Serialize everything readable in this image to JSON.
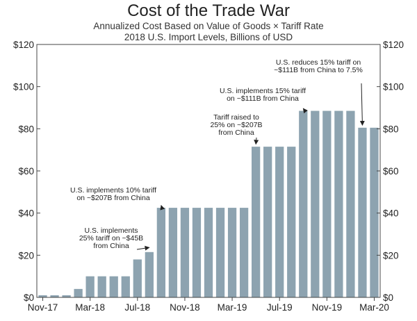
{
  "chart_data": {
    "type": "bar",
    "title": "Cost of the Trade War",
    "subtitle_line1": "Annualized Cost Based on Value of Goods × Tariff Rate",
    "subtitle_line2": "2018 U.S. Import Levels, Billions of USD",
    "xlabel": "",
    "ylabel": "",
    "ylim": [
      0,
      120
    ],
    "yticks": [
      0,
      20,
      40,
      60,
      80,
      100,
      120
    ],
    "ytick_labels": [
      "$0",
      "$20",
      "$40",
      "$60",
      "$80",
      "$100",
      "$120"
    ],
    "xtick_labels": [
      {
        "label": "Nov-17",
        "index": 0
      },
      {
        "label": "Mar-18",
        "index": 4
      },
      {
        "label": "Jul-18",
        "index": 8
      },
      {
        "label": "Nov-18",
        "index": 12
      },
      {
        "label": "Mar-19",
        "index": 16
      },
      {
        "label": "Jul-19",
        "index": 20
      },
      {
        "label": "Nov-19",
        "index": 24
      },
      {
        "label": "Mar-20",
        "index": 28
      }
    ],
    "categories": [
      "Nov-17",
      "Dec-17",
      "Jan-18",
      "Feb-18",
      "Mar-18",
      "Apr-18",
      "May-18",
      "Jun-18",
      "Jul-18",
      "Aug-18",
      "Sep-18",
      "Oct-18",
      "Nov-18",
      "Dec-18",
      "Jan-19",
      "Feb-19",
      "Mar-19",
      "Apr-19",
      "May-19",
      "Jun-19",
      "Jul-19",
      "Aug-19",
      "Sep-19",
      "Oct-19",
      "Nov-19",
      "Dec-19",
      "Jan-20",
      "Feb-20",
      "Mar-20"
    ],
    "values": [
      1,
      1,
      1,
      4,
      10,
      10,
      10,
      10,
      18,
      21.5,
      42.5,
      42.5,
      42.5,
      42.5,
      42.5,
      42.5,
      42.5,
      42.5,
      71.5,
      71.5,
      71.5,
      71.5,
      88.5,
      88.5,
      88.5,
      88.5,
      88.5,
      80.5,
      80.5
    ],
    "bar_color": "#8da3b0",
    "annotations": [
      {
        "lines": [
          "U.S. implements",
          "25% tariff on ~$45B",
          "from China"
        ],
        "bar_index": 9,
        "arrow_end_value": 23
      },
      {
        "lines": [
          "U.S. implements 10% tariff",
          "on ~$207B from China"
        ],
        "bar_index": 10,
        "arrow_end_value": 43
      },
      {
        "lines": [
          "Tariff raised to",
          "25% on ~$207B",
          "from China"
        ],
        "bar_index": 18,
        "arrow_end_value": 72
      },
      {
        "lines": [
          "U.S. implements 15% tariff",
          "on ~$111B from China"
        ],
        "bar_index": 22,
        "arrow_end_value": 89
      },
      {
        "lines": [
          "U.S. reduces 15% tariff on",
          "~$111B from China to 7.5%"
        ],
        "bar_index": 27,
        "arrow_end_value": 81
      }
    ]
  }
}
